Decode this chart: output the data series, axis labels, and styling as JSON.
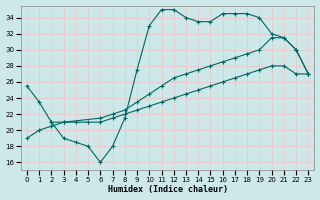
{
  "title": "",
  "xlabel": "Humidex (Indice chaleur)",
  "ylabel": "",
  "bg_color": "#cce8e8",
  "grid_color": "#e8c8c8",
  "line_color": "#006666",
  "ylim": [
    15,
    35.5
  ],
  "xlim": [
    -0.5,
    23.5
  ],
  "yticks": [
    16,
    18,
    20,
    22,
    24,
    26,
    28,
    30,
    32,
    34
  ],
  "xticks": [
    0,
    1,
    2,
    3,
    4,
    5,
    6,
    7,
    8,
    9,
    10,
    11,
    12,
    13,
    14,
    15,
    16,
    17,
    18,
    19,
    20,
    21,
    22,
    23
  ],
  "line1_x": [
    0,
    1,
    2,
    3,
    4,
    5,
    6,
    7,
    8,
    9,
    10,
    11,
    12,
    13,
    14,
    15,
    16,
    17,
    18,
    19,
    20,
    21,
    22,
    23
  ],
  "line1_y": [
    25.5,
    23.5,
    21,
    19,
    18.5,
    18,
    16,
    18,
    21.5,
    27.5,
    33,
    35,
    35,
    34,
    33.5,
    33.5,
    34.5,
    34.5,
    34.5,
    34,
    32,
    31.5,
    30,
    27
  ],
  "line2_x": [
    2,
    3,
    6,
    7,
    8,
    9,
    10,
    11,
    12,
    13,
    14,
    15,
    16,
    17,
    18,
    19,
    20,
    21,
    22,
    23
  ],
  "line2_y": [
    21,
    21,
    21.5,
    22,
    22.5,
    23.5,
    24.5,
    25.5,
    26.5,
    27,
    27.5,
    28,
    28.5,
    29,
    29.5,
    30,
    31.5,
    31.5,
    30,
    27
  ],
  "line3_x": [
    0,
    1,
    2,
    3,
    4,
    5,
    6,
    7,
    8,
    9,
    10,
    11,
    12,
    13,
    14,
    15,
    16,
    17,
    18,
    19,
    20,
    21,
    22,
    23
  ],
  "line3_y": [
    19,
    20,
    20.5,
    21,
    21,
    21,
    21,
    21.5,
    22,
    22.5,
    23,
    23.5,
    24,
    24.5,
    25,
    25.5,
    26,
    26.5,
    27,
    27.5,
    28,
    28,
    27,
    27
  ]
}
